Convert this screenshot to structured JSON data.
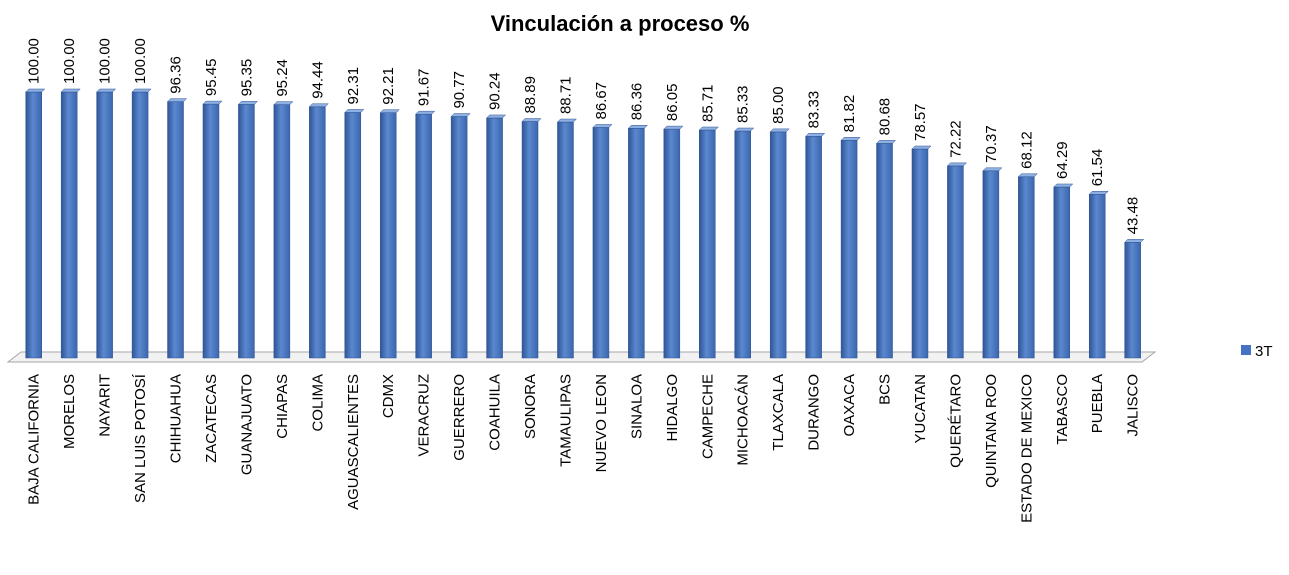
{
  "chart_data": {
    "type": "bar",
    "title": "Vinculación a proceso %",
    "categories": [
      "BAJA CALIFORNIA",
      "MORELOS",
      "NAYARIT",
      "SAN LUIS POTOSÍ",
      "CHIHUAHUA",
      "ZACATECAS",
      "GUANAJUATO",
      "CHIAPAS",
      "COLIMA",
      "AGUASCALIENTES",
      "CDMX",
      "VERACRUZ",
      "GUERRERO",
      "COAHUILA",
      "SONORA",
      "TAMAULIPAS",
      "NUEVO LEON",
      "SINALOA",
      "HIDALGO",
      "CAMPECHE",
      "MICHOACÁN",
      "TLAXCALA",
      "DURANGO",
      "OAXACA",
      "BCS",
      "YUCATAN",
      "QUERÉTARO",
      "QUINTANA ROO",
      "ESTADO DE MEXICO",
      "TABASCO",
      "PUEBLA",
      "JALISCO"
    ],
    "series": [
      {
        "name": "3T",
        "color": "#4472c4",
        "values": [
          100,
          100,
          100,
          100,
          96.36,
          95.45,
          95.35,
          95.24,
          94.44,
          92.31,
          92.21,
          91.67,
          90.77,
          90.24,
          88.89,
          88.71,
          86.67,
          86.36,
          86.05,
          85.71,
          85.33,
          85,
          83.33,
          81.82,
          80.68,
          78.57,
          72.22,
          70.37,
          68.12,
          64.29,
          61.54,
          43.48
        ],
        "value_labels": [
          "100.00",
          "100.00",
          "100.00",
          "100.00",
          "96.36",
          "95.45",
          "95.35",
          "95.24",
          "94.44",
          "92.31",
          "92.21",
          "91.67",
          "90.77",
          "90.24",
          "88.89",
          "88.71",
          "86.67",
          "86.36",
          "86.05",
          "85.71",
          "85.33",
          "85.00",
          "83.33",
          "81.82",
          "80.68",
          "78.57",
          "72.22",
          "70.37",
          "68.12",
          "64.29",
          "61.54",
          "43.48"
        ]
      }
    ],
    "ylim": [
      0,
      100
    ],
    "legend": "right"
  }
}
